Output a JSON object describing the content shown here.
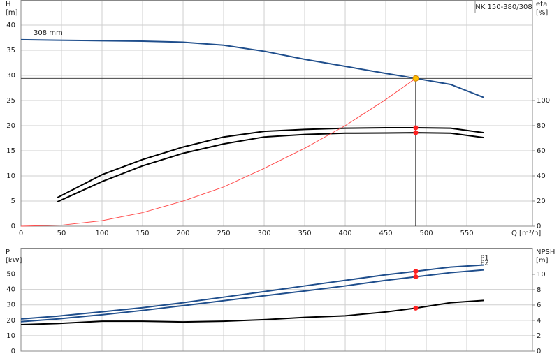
{
  "chart_data": [
    {
      "type": "line",
      "title": "NK 150-380/308",
      "x_label": "Q [m³/h]",
      "y_label": "H",
      "y_unit": "[m]",
      "y2_label": "eta",
      "y2_unit": "[%]",
      "xlim": [
        0,
        631
      ],
      "xticks": [
        0,
        50,
        100,
        150,
        200,
        250,
        300,
        350,
        400,
        450,
        500,
        550
      ],
      "ylim": [
        0,
        45
      ],
      "yticks": [
        0,
        5,
        10,
        15,
        20,
        25,
        30,
        35,
        40
      ],
      "y2lim": [
        0,
        180
      ],
      "y2ticks": [
        0,
        20,
        40,
        60,
        80,
        100
      ],
      "grid": true,
      "series": [
        {
          "name": "308 mm",
          "color": "#1f4e8c",
          "x": [
            0,
            45,
            100,
            150,
            200,
            250,
            300,
            350,
            400,
            450,
            487,
            530,
            571
          ],
          "values": [
            37.1,
            37.0,
            36.9,
            36.8,
            36.6,
            36.0,
            34.8,
            33.2,
            31.8,
            30.4,
            29.4,
            28.2,
            25.6
          ]
        },
        {
          "color": "#000000",
          "axis": "y2",
          "x": [
            45,
            100,
            150,
            200,
            250,
            300,
            350,
            400,
            450,
            487,
            530,
            571
          ],
          "values": [
            22.8,
            41,
            53,
            63,
            71,
            75.5,
            77,
            78,
            78.3,
            78.3,
            78,
            74.4
          ]
        },
        {
          "color": "#000000",
          "axis": "y2",
          "x": [
            45,
            100,
            150,
            200,
            250,
            300,
            350,
            400,
            450,
            487,
            530,
            571
          ],
          "values": [
            19.4,
            35.5,
            48,
            58,
            65.5,
            71,
            73,
            74,
            74.2,
            74.4,
            74,
            70.5
          ]
        },
        {
          "color": "#ff4b4b",
          "x": [
            0,
            50,
            100,
            150,
            200,
            250,
            300,
            350,
            400,
            450,
            487
          ],
          "values": [
            0,
            0.2,
            1.1,
            2.7,
            5,
            7.8,
            11.5,
            15.5,
            20,
            25.2,
            29.4
          ]
        }
      ],
      "operating_point": {
        "x": 487,
        "y": 29.4
      }
    },
    {
      "type": "line",
      "y_label": "P",
      "y_unit": "[kW]",
      "y2_label": "NPSH",
      "y2_unit": "[m]",
      "ylim": [
        0,
        67
      ],
      "yticks": [
        0,
        10,
        20,
        30,
        40,
        50
      ],
      "y2lim": [
        0,
        13.45
      ],
      "y2ticks": [
        0,
        2,
        4,
        6,
        8,
        10
      ],
      "series": [
        {
          "name": "P1",
          "color": "#1f4e8c",
          "x": [
            0,
            45,
            100,
            150,
            200,
            250,
            300,
            350,
            400,
            450,
            487,
            530,
            571
          ],
          "values": [
            20.9,
            22.7,
            25.5,
            28.2,
            31.4,
            35,
            38.6,
            42.3,
            45.9,
            49.5,
            51.8,
            54.5,
            55.9
          ]
        },
        {
          "name": "P2",
          "color": "#1f4e8c",
          "x": [
            0,
            45,
            100,
            150,
            200,
            250,
            300,
            350,
            400,
            450,
            487,
            530,
            571
          ],
          "values": [
            19.1,
            20.9,
            23.6,
            26.4,
            29.5,
            32.7,
            35.9,
            39,
            42.3,
            45.9,
            48.2,
            50.9,
            52.7
          ]
        },
        {
          "color": "#000000",
          "axis": "y2",
          "x": [
            0,
            45,
            100,
            150,
            200,
            250,
            300,
            350,
            400,
            450,
            487,
            530,
            571
          ],
          "values": [
            3.45,
            3.6,
            3.9,
            3.9,
            3.8,
            3.9,
            4.1,
            4.4,
            4.6,
            5.1,
            5.6,
            6.3,
            6.6
          ]
        }
      ]
    }
  ]
}
